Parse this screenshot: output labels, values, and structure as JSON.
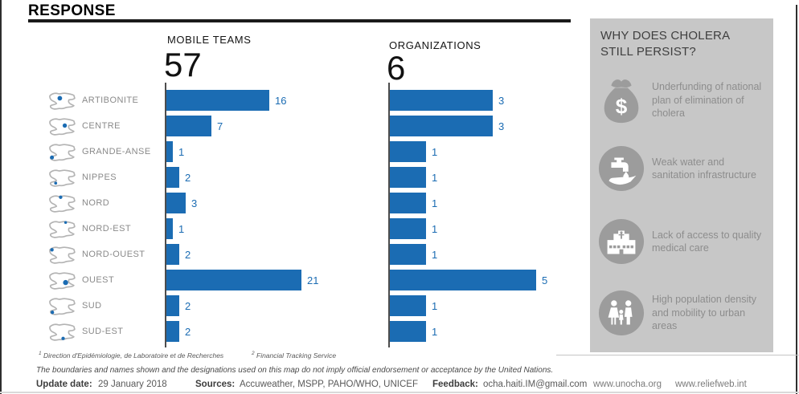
{
  "header": {
    "title": "RESPONSE"
  },
  "chart_data": {
    "type": "bar",
    "orientation": "horizontal",
    "grid": false,
    "legend": "none",
    "categories": [
      "ARTIBONITE",
      "CENTRE",
      "GRANDE-ANSE",
      "NIPPES",
      "NORD",
      "NORD-EST",
      "NORD-OUEST",
      "OUEST",
      "SUD",
      "SUD-EST"
    ],
    "series": [
      {
        "name": "MOBILE TEAMS",
        "total": 57,
        "values": [
          16,
          7,
          1,
          2,
          3,
          1,
          2,
          21,
          2,
          2
        ],
        "xlim": [
          0,
          21
        ]
      },
      {
        "name": "ORGANIZATIONS",
        "total": 6,
        "values": [
          3,
          3,
          1,
          1,
          1,
          1,
          1,
          5,
          1,
          1
        ],
        "xlim": [
          0,
          5
        ]
      }
    ],
    "bar_color": "#1b6cb3",
    "value_label_color": "#1b6cb3"
  },
  "sidebar": {
    "title": "WHY DOES CHOLERA STILL PERSIST?",
    "bg_color": "#c7c7c7",
    "icon_color": "#9c9c9c",
    "items": [
      {
        "icon": "money-bag-icon",
        "text": "Underfunding of national plan of elimination of cholera"
      },
      {
        "icon": "water-sanitation-icon",
        "text": "Weak water and sanitation infrastructure"
      },
      {
        "icon": "hospital-icon",
        "text": "Lack of access to quality medical care"
      },
      {
        "icon": "family-icon",
        "text": "High population density and mobility to urban areas"
      }
    ]
  },
  "footnotes": [
    {
      "sup": "1",
      "text": "Direction d'Epidémiologie, de Laboratoire et de Recherches"
    },
    {
      "sup": "2",
      "text": "Financial Tracking Service"
    }
  ],
  "disclaimer": "The boundaries and names shown and the designations used on this map do not imply official endorsement or acceptance by the United Nations.",
  "footer": {
    "update_label": "Update date:",
    "update_value": "29 January 2018",
    "sources_label": "Sources:",
    "sources_value": "Accuweather, MSPP, PAHO/WHO, UNICEF",
    "feedback_label": "Feedback:",
    "feedback_value": "ocha.haiti.IM@gmail.com",
    "links": [
      "www.unocha.org",
      "www.reliefweb.int"
    ]
  }
}
